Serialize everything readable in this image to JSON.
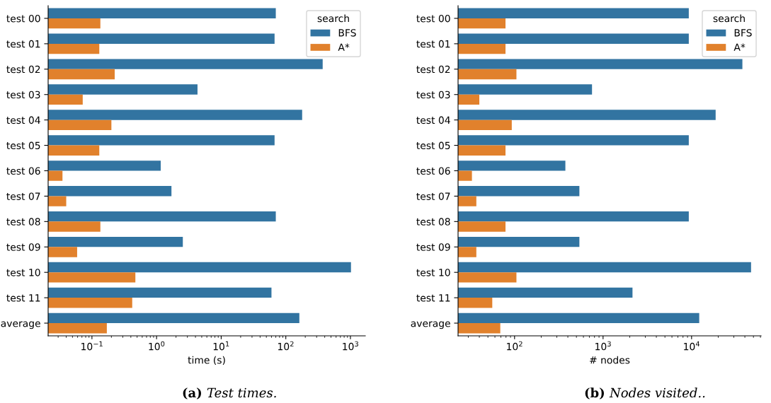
{
  "chart_data": [
    {
      "type": "bar",
      "orientation": "horizontal",
      "log": "x",
      "xlabel": "time (s)",
      "legend_title": "search",
      "legend": "top right",
      "grid": false,
      "categories": [
        "test 00",
        "test 01",
        "test 02",
        "test 03",
        "test 04",
        "test 05",
        "test 06",
        "test 07",
        "test 08",
        "test 09",
        "test 10",
        "test 11",
        "average"
      ],
      "series": [
        {
          "name": "BFS",
          "color": "#3274a1",
          "values": [
            70,
            67,
            372,
            4.3,
            179,
            67,
            1.16,
            1.7,
            70,
            2.55,
            1020,
            60,
            162
          ]
        },
        {
          "name": "A*",
          "color": "#e1812c",
          "values": [
            0.135,
            0.13,
            0.225,
            0.072,
            0.2,
            0.13,
            0.035,
            0.04,
            0.135,
            0.059,
            0.47,
            0.42,
            0.17
          ]
        }
      ],
      "xlim": [
        0.021,
        1700
      ],
      "xticks": [
        {
          "value": 0.1,
          "label": "10$^{−1}$"
        },
        {
          "value": 1,
          "label": "10$^{0}$"
        },
        {
          "value": 10,
          "label": "10$^{1}$"
        },
        {
          "value": 100,
          "label": "10$^{2}$"
        },
        {
          "value": 1000,
          "label": "10$^{3}$"
        }
      ],
      "annotations": [
        "(a) Test times."
      ]
    },
    {
      "type": "bar",
      "orientation": "horizontal",
      "log": "x",
      "xlabel": "# nodes",
      "legend_title": "search",
      "legend": "top right",
      "grid": false,
      "categories": [
        "test 00",
        "test 01",
        "test 02",
        "test 03",
        "test 04",
        "test 05",
        "test 06",
        "test 07",
        "test 08",
        "test 09",
        "test 10",
        "test 11",
        "average"
      ],
      "series": [
        {
          "name": "BFS",
          "color": "#3274a1",
          "values": [
            9300,
            9300,
            37500,
            750,
            18700,
            9300,
            375,
            540,
            9300,
            540,
            47000,
            2150,
            12200
          ]
        },
        {
          "name": "A*",
          "color": "#e1812c",
          "values": [
            79,
            79,
            105,
            40,
            93,
            79,
            33,
            37,
            79,
            37,
            105,
            56,
            69
          ]
        }
      ],
      "xlim": [
        23,
        61000
      ],
      "xticks": [
        {
          "value": 100,
          "label": "10$^{2}$"
        },
        {
          "value": 1000,
          "label": "10$^{3}$"
        },
        {
          "value": 10000,
          "label": "10$^{4}$"
        }
      ],
      "annotations": [
        "(b) Nodes visited.."
      ]
    }
  ]
}
